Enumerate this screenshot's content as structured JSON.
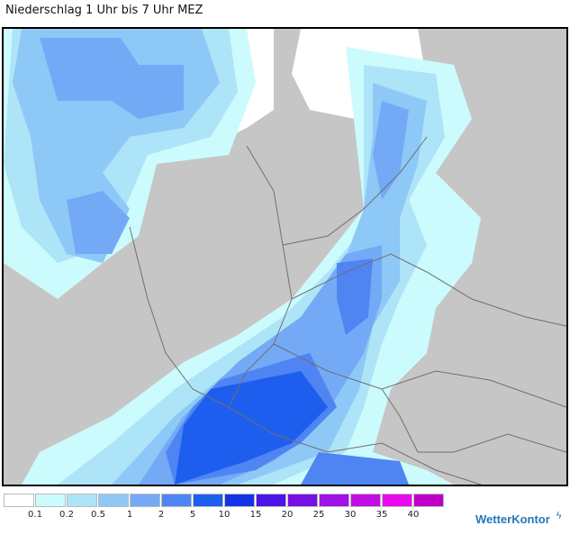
{
  "header": {
    "title": "Niederschlag 1 Uhr bis 7 Uhr MEZ"
  },
  "map": {
    "land_color": "#c6c6c6",
    "sea_color": "#ffffff",
    "border_color": "#6f6f6f"
  },
  "legend": {
    "colors": [
      "#ffffff",
      "#ccfbfd",
      "#aee4f8",
      "#8ec8f6",
      "#74aaf5",
      "#4f85f3",
      "#1e5eef",
      "#1433e8",
      "#4b14e6",
      "#7710e4",
      "#a012e6",
      "#c10fe1",
      "#ea08ec",
      "#c000c9"
    ],
    "ticks": [
      "0.1",
      "0.2",
      "0.5",
      "1",
      "2",
      "5",
      "10",
      "15",
      "20",
      "25",
      "30",
      "35",
      "40"
    ]
  },
  "brand": {
    "name": "WetterKontor",
    "icon": "lightning-icon"
  }
}
